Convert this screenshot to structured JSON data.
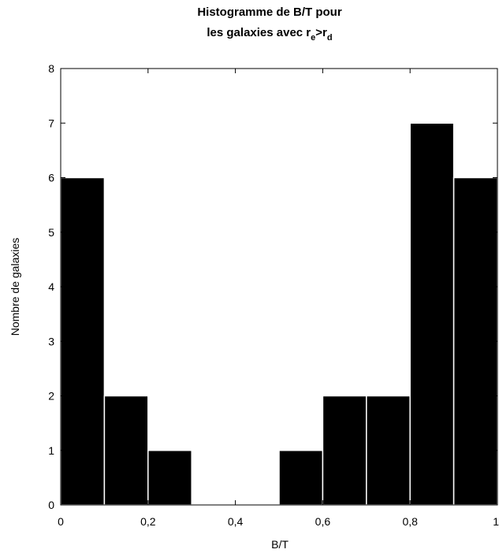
{
  "chart_data": {
    "type": "bar",
    "title": {
      "line1": "Histogramme de B/T pour",
      "line2_prefix": "les galaxies avec r",
      "line2_sub1": "e",
      "line2_mid": ">r",
      "line2_sub2": "d"
    },
    "xlabel": "B/T",
    "ylabel": "Nombre de galaxies",
    "xlim": [
      0,
      1
    ],
    "ylim": [
      0,
      8
    ],
    "x_ticks": [
      {
        "value": 0,
        "label": "0"
      },
      {
        "value": 0.2,
        "label": "0,2"
      },
      {
        "value": 0.4,
        "label": "0,4"
      },
      {
        "value": 0.6,
        "label": "0,6"
      },
      {
        "value": 0.8,
        "label": "0,8"
      },
      {
        "value": 1,
        "label": "1"
      }
    ],
    "y_ticks": [
      {
        "value": 0,
        "label": "0"
      },
      {
        "value": 1,
        "label": "1"
      },
      {
        "value": 2,
        "label": "2"
      },
      {
        "value": 3,
        "label": "3"
      },
      {
        "value": 4,
        "label": "4"
      },
      {
        "value": 5,
        "label": "5"
      },
      {
        "value": 6,
        "label": "6"
      },
      {
        "value": 7,
        "label": "7"
      },
      {
        "value": 8,
        "label": "8"
      }
    ],
    "bins": [
      {
        "x0": 0.0,
        "x1": 0.1,
        "count": 6
      },
      {
        "x0": 0.1,
        "x1": 0.2,
        "count": 2
      },
      {
        "x0": 0.2,
        "x1": 0.3,
        "count": 1
      },
      {
        "x0": 0.3,
        "x1": 0.4,
        "count": 0
      },
      {
        "x0": 0.4,
        "x1": 0.5,
        "count": 0
      },
      {
        "x0": 0.5,
        "x1": 0.6,
        "count": 1
      },
      {
        "x0": 0.6,
        "x1": 0.7,
        "count": 2
      },
      {
        "x0": 0.7,
        "x1": 0.8,
        "count": 2
      },
      {
        "x0": 0.8,
        "x1": 0.9,
        "count": 7
      },
      {
        "x0": 0.9,
        "x1": 1.0,
        "count": 6
      }
    ],
    "bar_color": "#000000",
    "bar_edge_color": "#ffffff",
    "grid": false,
    "legend": "none"
  }
}
